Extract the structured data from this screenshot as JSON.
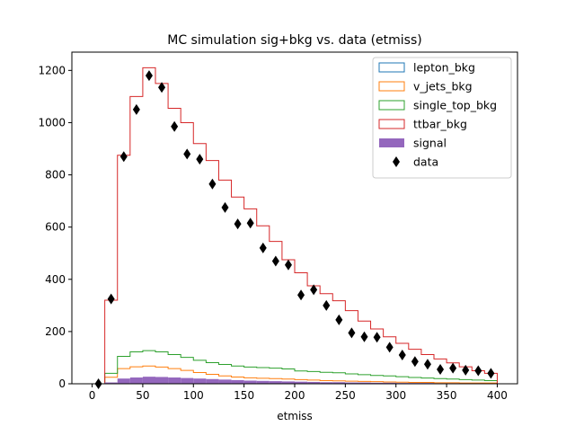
{
  "chart_data": {
    "type": "step-histogram",
    "title": "MC simulation sig+bkg vs. data (etmiss)",
    "xlabel": "etmiss",
    "ylabel": "",
    "xlim": [
      -20,
      420
    ],
    "ylim": [
      0,
      1270
    ],
    "xticks": [
      0,
      50,
      100,
      150,
      200,
      250,
      300,
      350,
      400
    ],
    "yticks": [
      0,
      200,
      400,
      600,
      800,
      1000,
      1200
    ],
    "grid": false,
    "legend_position": "top-right",
    "bin_edges": [
      12.5,
      25,
      37.5,
      50,
      62.5,
      75,
      87.5,
      100,
      112.5,
      125,
      137.5,
      150,
      162.5,
      175,
      187.5,
      200,
      212.5,
      225,
      237.5,
      250,
      262.5,
      275,
      287.5,
      300,
      312.5,
      325,
      337.5,
      350,
      362.5,
      375,
      387.5,
      400
    ],
    "series": [
      {
        "name": "lepton_bkg",
        "style": "step",
        "color": "#1f77b4",
        "values": [
          0,
          0,
          0,
          0,
          0,
          0,
          0,
          0,
          0,
          0,
          0,
          0,
          0,
          0,
          0,
          0,
          0,
          0,
          0,
          0,
          0,
          0,
          0,
          0,
          0,
          0,
          0,
          0,
          0,
          0,
          0
        ]
      },
      {
        "name": "v_jets_bkg",
        "style": "step",
        "color": "#ff7f0e",
        "values": [
          25,
          58,
          65,
          68,
          64,
          58,
          51,
          43,
          36,
          30,
          26,
          23,
          21,
          20,
          18,
          16,
          14,
          12,
          11,
          10,
          9,
          8,
          7,
          6,
          5,
          5,
          4,
          4,
          3,
          3,
          3
        ]
      },
      {
        "name": "single_top_bkg",
        "style": "step",
        "color": "#2ca02c",
        "values": [
          40,
          105,
          122,
          127,
          122,
          112,
          101,
          90,
          81,
          74,
          68,
          64,
          62,
          60,
          57,
          49,
          47,
          44,
          42,
          38,
          35,
          32,
          30,
          27,
          24,
          22,
          20,
          18,
          16,
          14,
          12
        ]
      },
      {
        "name": "ttbar_bkg",
        "style": "step",
        "color": "#d62728",
        "values": [
          320,
          875,
          1100,
          1210,
          1150,
          1055,
          1000,
          920,
          855,
          780,
          715,
          670,
          605,
          545,
          475,
          425,
          375,
          345,
          318,
          280,
          240,
          210,
          180,
          155,
          132,
          112,
          95,
          80,
          65,
          50,
          40
        ]
      },
      {
        "name": "signal",
        "style": "filled",
        "color": "#9467bd",
        "values": [
          5,
          20,
          24,
          27,
          26,
          24,
          22,
          20,
          18,
          16,
          14,
          12,
          11,
          10,
          9,
          8,
          7,
          6,
          6,
          5,
          5,
          4,
          4,
          3,
          3,
          3,
          2,
          2,
          2,
          2,
          1
        ]
      }
    ],
    "data_points": {
      "name": "data",
      "marker": "diamond",
      "color": "#000000",
      "x": [
        6.25,
        18.75,
        31.25,
        43.75,
        56.25,
        68.75,
        81.25,
        93.75,
        106.25,
        118.75,
        131.25,
        143.75,
        156.25,
        168.75,
        181.25,
        193.75,
        206.25,
        218.75,
        231.25,
        243.75,
        256.25,
        268.75,
        281.25,
        293.75,
        306.25,
        318.75,
        331.25,
        343.75,
        356.25,
        368.75,
        381.25,
        393.75
      ],
      "y": [
        0,
        325,
        870,
        1050,
        1180,
        1135,
        985,
        880,
        860,
        765,
        675,
        612,
        615,
        520,
        470,
        455,
        340,
        360,
        300,
        245,
        195,
        180,
        178,
        140,
        110,
        85,
        75,
        55,
        60,
        52,
        50,
        40
      ]
    }
  }
}
